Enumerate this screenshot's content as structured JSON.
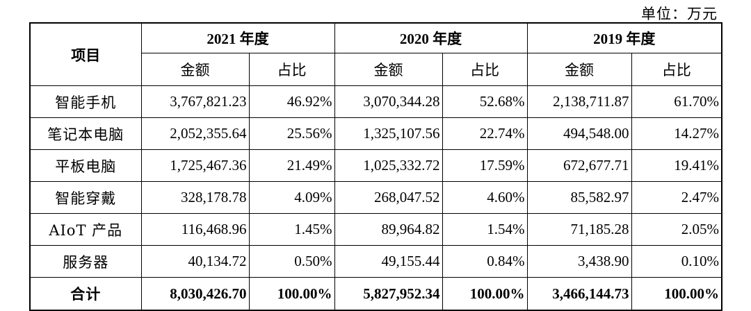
{
  "unit_label": "单位：万元",
  "header": {
    "item_label": "项目",
    "years": [
      "2021 年度",
      "2020 年度",
      "2019 年度"
    ],
    "amount_label": "金额",
    "share_label": "占比"
  },
  "rows": [
    {
      "name": "智能手机",
      "v2021": "3,767,821.23",
      "p2021": "46.92%",
      "v2020": "3,070,344.28",
      "p2020": "52.68%",
      "v2019": "2,138,711.87",
      "p2019": "61.70%"
    },
    {
      "name": "笔记本电脑",
      "v2021": "2,052,355.64",
      "p2021": "25.56%",
      "v2020": "1,325,107.56",
      "p2020": "22.74%",
      "v2019": "494,548.00",
      "p2019": "14.27%"
    },
    {
      "name": "平板电脑",
      "v2021": "1,725,467.36",
      "p2021": "21.49%",
      "v2020": "1,025,332.72",
      "p2020": "17.59%",
      "v2019": "672,677.71",
      "p2019": "19.41%"
    },
    {
      "name": "智能穿戴",
      "v2021": "328,178.78",
      "p2021": "4.09%",
      "v2020": "268,047.52",
      "p2020": "4.60%",
      "v2019": "85,582.97",
      "p2019": "2.47%"
    },
    {
      "name": "AIoT 产品",
      "v2021": "116,468.96",
      "p2021": "1.45%",
      "v2020": "89,964.82",
      "p2020": "1.54%",
      "v2019": "71,185.28",
      "p2019": "2.05%"
    },
    {
      "name": "服务器",
      "v2021": "40,134.72",
      "p2021": "0.50%",
      "v2020": "49,155.44",
      "p2020": "0.84%",
      "v2019": "3,438.90",
      "p2019": "0.10%"
    }
  ],
  "total": {
    "name": "合计",
    "v2021": "8,030,426.70",
    "p2021": "100.00%",
    "v2020": "5,827,952.34",
    "p2020": "100.00%",
    "v2019": "3,466,144.73",
    "p2019": "100.00%"
  }
}
